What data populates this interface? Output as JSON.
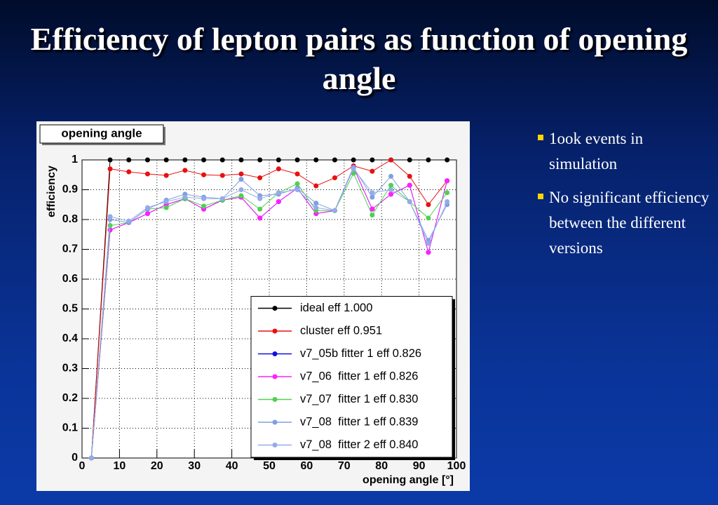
{
  "title": "Efficiency of lepton pairs as function of opening angle",
  "bullets": [
    "1ook events in simulation",
    "No significant efficiency between the different versions"
  ],
  "chart_data": {
    "type": "line",
    "title": "opening angle",
    "x_label": "opening angle [°]",
    "y_label": "efficiency",
    "x": [
      2.5,
      7.5,
      12.5,
      17.5,
      22.5,
      27.5,
      32.5,
      37.5,
      42.5,
      47.5,
      52.5,
      57.5,
      62.5,
      67.5,
      72.5,
      77.5,
      82.5,
      87.5,
      92.5,
      97.5
    ],
    "series": [
      {
        "name": "ideal eff 1.000",
        "color": "#000000",
        "values": [
          0,
          1,
          1,
          1,
          1,
          1,
          1,
          1,
          1,
          1,
          1,
          1,
          1,
          1,
          1,
          1,
          1,
          1,
          1,
          1
        ]
      },
      {
        "name": "cluster eff 0.951",
        "color": "#e81010",
        "values": [
          0,
          0.97,
          0.96,
          0.953,
          0.948,
          0.965,
          0.95,
          0.948,
          0.953,
          0.94,
          0.97,
          0.953,
          0.913,
          0.94,
          0.98,
          0.962,
          1.0,
          0.945,
          0.85,
          0.93
        ]
      },
      {
        "name": "v7_05b fitter 1 eff 0.826",
        "color": "#1010e0",
        "values": [
          0,
          0.765,
          0.79,
          0.82,
          0.85,
          0.87,
          0.835,
          0.865,
          0.875,
          0.805,
          0.86,
          0.905,
          0.82,
          0.83,
          0.975,
          0.835,
          0.885,
          0.915,
          0.69,
          0.93
        ]
      },
      {
        "name": "v7_06  fitter 1 eff 0.826",
        "color": "#ff20ff",
        "values": [
          0,
          0.765,
          0.79,
          0.82,
          0.85,
          0.87,
          0.835,
          0.865,
          0.875,
          0.805,
          0.86,
          0.905,
          0.82,
          0.83,
          0.975,
          0.835,
          0.885,
          0.915,
          0.69,
          0.93
        ]
      },
      {
        "name": "v7_07  fitter 1 eff 0.830",
        "color": "#50d050",
        "values": [
          0,
          0.78,
          0.79,
          0.835,
          0.84,
          0.87,
          0.845,
          0.865,
          0.88,
          0.835,
          0.89,
          0.92,
          0.83,
          0.83,
          0.955,
          0.815,
          0.915,
          0.86,
          0.805,
          0.89
        ]
      },
      {
        "name": "v7_08  fitter 1 eff 0.839",
        "color": "#7f9fdf",
        "values": [
          0,
          0.8,
          0.79,
          0.835,
          0.865,
          0.885,
          0.875,
          0.87,
          0.935,
          0.88,
          0.885,
          0.905,
          0.855,
          0.83,
          0.975,
          0.875,
          0.945,
          0.86,
          0.73,
          0.85
        ]
      },
      {
        "name": "v7_08  fitter 2 eff 0.840",
        "color": "#93abe8",
        "values": [
          0,
          0.81,
          0.795,
          0.84,
          0.86,
          0.875,
          0.87,
          0.87,
          0.9,
          0.87,
          0.89,
          0.9,
          0.84,
          0.83,
          0.97,
          0.89,
          0.9,
          0.86,
          0.72,
          0.86
        ]
      }
    ],
    "xlim": [
      0,
      100
    ],
    "ylim": [
      0,
      1
    ],
    "xticks": [
      0,
      10,
      20,
      30,
      40,
      50,
      60,
      70,
      80,
      90,
      100
    ],
    "yticks": [
      0,
      0.1,
      0.2,
      0.3,
      0.4,
      0.5,
      0.6,
      0.7,
      0.8,
      0.9,
      1
    ],
    "grid": true,
    "legend": "lower right"
  }
}
